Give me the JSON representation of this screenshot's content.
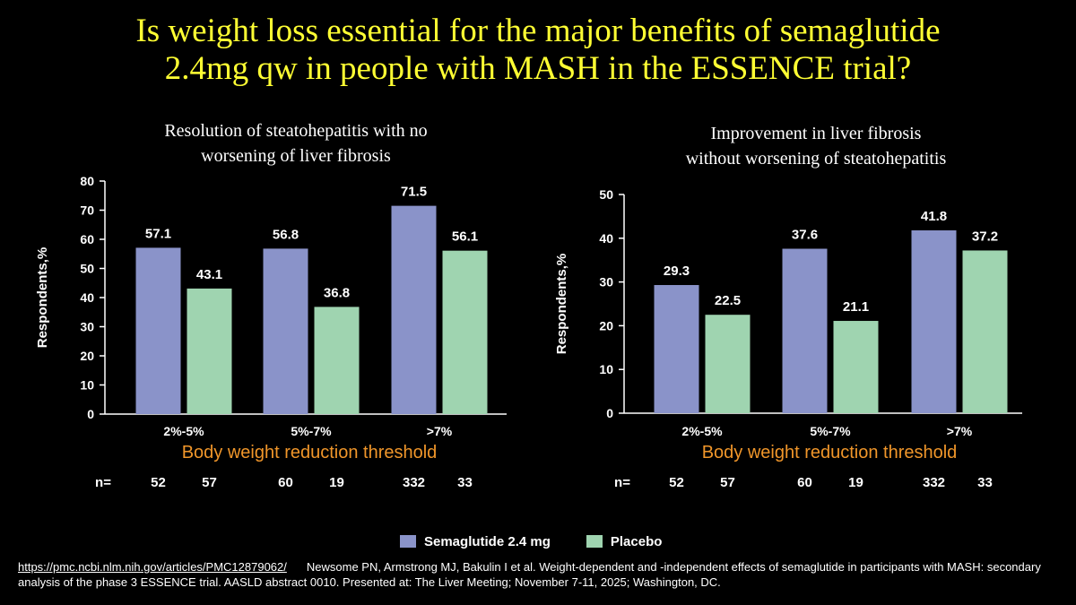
{
  "slide": {
    "title_line1": "Is weight loss essential for the major benefits of semaglutide",
    "title_line2": "2.4mg qw in people with MASH  in the ESSENCE trial?"
  },
  "colors": {
    "semaglutide": "#8a93c9",
    "placebo": "#9fd4b0",
    "title": "#ffff33",
    "xlabel": "#f0962a"
  },
  "legend": {
    "semaglutide_label": "Semaglutide 2.4 mg",
    "placebo_label": "Placebo"
  },
  "source": {
    "url": "https://pmc.ncbi.nlm.nih.gov/articles/PMC12879062/",
    "citation": "Newsome PN, Armstrong MJ, Bakulin I et al. Weight-dependent and -independent effects of semaglutide in participants with MASH: secondary analysis of the phase 3 ESSENCE trial. AASLD abstract 0010. Presented at: The Liver Meeting; November 7-11, 2025; Washington, DC."
  },
  "chart_data": [
    {
      "type": "bar",
      "title": [
        "Resolution of steatohepatitis with no",
        "worsening of liver fibrosis"
      ],
      "ylabel": "Respondents,%",
      "xlabel": "Body weight reduction threshold",
      "categories": [
        "2%-5%",
        "5%-7%",
        ">7%"
      ],
      "ylim": [
        0,
        80
      ],
      "yticks": [
        0,
        10,
        20,
        30,
        40,
        50,
        60,
        70,
        80
      ],
      "series": [
        {
          "name": "Semaglutide 2.4 mg",
          "values": [
            57.1,
            56.8,
            71.5
          ]
        },
        {
          "name": "Placebo",
          "values": [
            43.1,
            36.8,
            56.1
          ]
        }
      ],
      "n_label": "n=",
      "n": [
        [
          52,
          57
        ],
        [
          60,
          19
        ],
        [
          332,
          33
        ]
      ]
    },
    {
      "type": "bar",
      "title": [
        "Improvement in liver fibrosis",
        "without worsening of steatohepatitis"
      ],
      "ylabel": "Respondents,%",
      "xlabel": "Body weight reduction threshold",
      "categories": [
        "2%-5%",
        "5%-7%",
        ">7%"
      ],
      "ylim": [
        0,
        50
      ],
      "yticks": [
        0,
        10,
        20,
        30,
        40,
        50
      ],
      "series": [
        {
          "name": "Semaglutide 2.4 mg",
          "values": [
            29.3,
            37.6,
            41.8
          ]
        },
        {
          "name": "Placebo",
          "values": [
            22.5,
            21.1,
            37.2
          ]
        }
      ],
      "n_label": "n=",
      "n": [
        [
          52,
          57
        ],
        [
          60,
          19
        ],
        [
          332,
          33
        ]
      ]
    }
  ]
}
